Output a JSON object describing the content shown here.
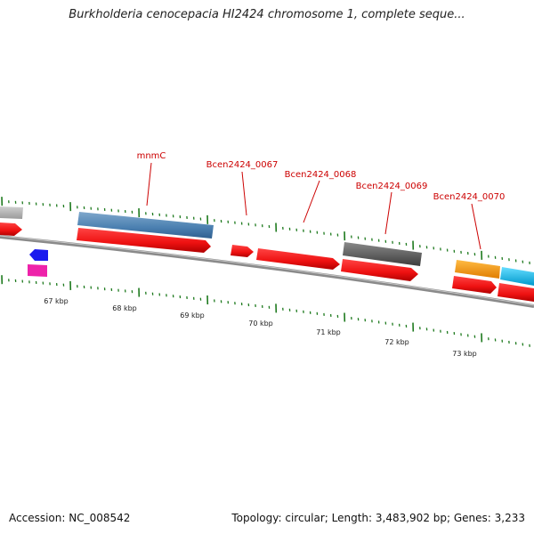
{
  "title": "Burkholderia cenocepacia HI2424 chromosome 1, complete seque...",
  "footer": {
    "accession": "Accession: NC_008542",
    "summary": "Topology: circular; Length: 3,483,902 bp; Genes: 3,233"
  },
  "colors": {
    "backbone": "#8a8a8a",
    "tick": "#1e7a1e",
    "label": "#cc0000",
    "cds": "#ee1111",
    "gene_blue": "#4a7fb0",
    "gene_gray": "#606060",
    "gene_lightgray": "#b5b5b5",
    "gene_orange": "#ff9900",
    "gene_cyan": "#22bbee",
    "gene_darkblue": "#1a1aee",
    "gene_magenta": "#ee22aa"
  },
  "kbp_labels": [
    "67 kbp",
    "68 kbp",
    "69 kbp",
    "70 kbp",
    "71 kbp",
    "72 kbp",
    "73 kbp"
  ],
  "gene_labels": [
    "mnmC",
    "Bcen2424_0067",
    "Bcen2424_0068",
    "Bcen2424_0069",
    "Bcen2424_0070"
  ]
}
